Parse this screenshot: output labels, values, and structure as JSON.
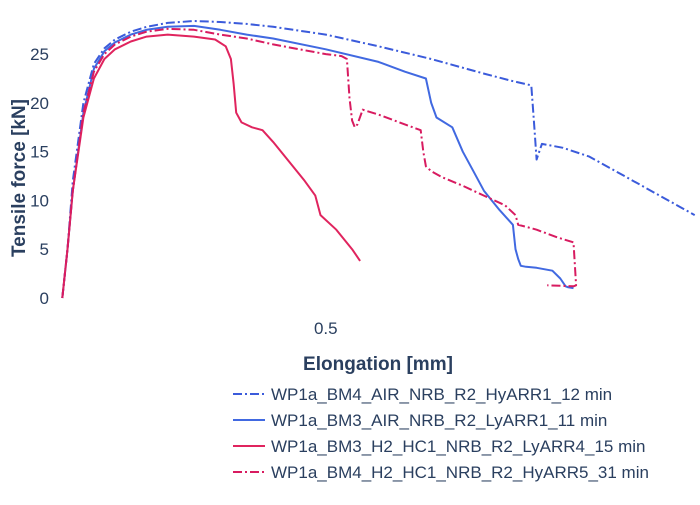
{
  "chart_data": {
    "type": "line",
    "xlabel": "Elongation [mm]",
    "ylabel": "Tensile force [kN]",
    "xlim": [
      -0.01,
      1.21
    ],
    "ylim": [
      0,
      28.5
    ],
    "x_ticks": [
      0.5
    ],
    "x_tick_labels": [
      "0.5"
    ],
    "y_ticks": [
      0,
      5,
      10,
      15,
      20,
      25
    ],
    "y_tick_labels": [
      "0",
      "5",
      "10",
      "15",
      "20",
      "25"
    ],
    "grid": false,
    "legend_position": "bottom-right",
    "series": [
      {
        "name": "WP1a_BM4_AIR_NRB_R2_HyARR1_12 min",
        "color": "#3b5bdb",
        "dash": "dashdot",
        "x": [
          0.0,
          0.01,
          0.02,
          0.04,
          0.06,
          0.08,
          0.1,
          0.13,
          0.16,
          0.2,
          0.25,
          0.3,
          0.35,
          0.4,
          0.5,
          0.6,
          0.7,
          0.8,
          0.85,
          0.89,
          0.895,
          0.9,
          0.91,
          0.95,
          1.0,
          1.05,
          1.1,
          1.15,
          1.2
        ],
        "y": [
          0,
          5,
          12,
          20,
          24,
          25.6,
          26.5,
          27.3,
          27.8,
          28.2,
          28.4,
          28.3,
          28.1,
          27.8,
          27.0,
          25.8,
          24.5,
          23.0,
          22.3,
          21.8,
          18.0,
          14.2,
          15.8,
          15.4,
          14.5,
          13.0,
          11.5,
          10.0,
          8.5
        ]
      },
      {
        "name": "WP1a_BM3_AIR_NRB_R2_LyARR1_11 min",
        "color": "#4169e1",
        "dash": "solid",
        "x": [
          0.0,
          0.01,
          0.02,
          0.04,
          0.06,
          0.08,
          0.1,
          0.13,
          0.16,
          0.2,
          0.25,
          0.3,
          0.35,
          0.4,
          0.5,
          0.6,
          0.65,
          0.69,
          0.7,
          0.71,
          0.74,
          0.76,
          0.78,
          0.8,
          0.83,
          0.855,
          0.86,
          0.865,
          0.87,
          0.88,
          0.9,
          0.93,
          0.945,
          0.955,
          0.96,
          0.97
        ],
        "y": [
          0,
          5,
          11,
          19,
          23.5,
          25.3,
          26.2,
          27.0,
          27.5,
          27.8,
          27.9,
          27.5,
          27.0,
          26.6,
          25.5,
          24.2,
          23.2,
          22.5,
          20.0,
          18.5,
          17.5,
          15.0,
          13.0,
          11.0,
          9.0,
          7.5,
          5.0,
          4.0,
          3.3,
          3.2,
          3.1,
          2.8,
          2.0,
          1.2,
          1.1,
          1.0
        ]
      },
      {
        "name": "WP1a_BM3_H2_HC1_NRB_R2_LyARR4_15 min",
        "color": "#e0245e",
        "dash": "solid",
        "x": [
          0.0,
          0.01,
          0.02,
          0.04,
          0.06,
          0.08,
          0.1,
          0.13,
          0.16,
          0.2,
          0.25,
          0.29,
          0.31,
          0.32,
          0.325,
          0.33,
          0.34,
          0.36,
          0.38,
          0.4,
          0.43,
          0.46,
          0.48,
          0.49,
          0.52,
          0.55,
          0.565
        ],
        "y": [
          0,
          5,
          11,
          18.5,
          22.5,
          24.5,
          25.5,
          26.3,
          26.8,
          27.0,
          26.8,
          26.5,
          25.8,
          24.5,
          22.0,
          19.0,
          18.0,
          17.5,
          17.2,
          16.0,
          14.0,
          12.0,
          10.5,
          8.5,
          7.0,
          5.0,
          3.8
        ]
      },
      {
        "name": "WP1a_BM4_H2_HC1_NRB_R2_HyARR5_31 min",
        "color": "#d81b60",
        "dash": "dashdot",
        "x": [
          0.0,
          0.01,
          0.02,
          0.04,
          0.06,
          0.08,
          0.1,
          0.13,
          0.16,
          0.2,
          0.25,
          0.3,
          0.35,
          0.4,
          0.45,
          0.5,
          0.53,
          0.54,
          0.545,
          0.55,
          0.555,
          0.56,
          0.57,
          0.6,
          0.65,
          0.68,
          0.685,
          0.69,
          0.7,
          0.72,
          0.76,
          0.8,
          0.84,
          0.86,
          0.865,
          0.88,
          0.9,
          0.94,
          0.97,
          0.975,
          0.97,
          0.92
        ],
        "y": [
          0,
          5,
          11,
          19,
          23.2,
          25,
          26,
          26.8,
          27.3,
          27.6,
          27.5,
          27.0,
          26.6,
          26.0,
          25.5,
          25.0,
          24.8,
          24.5,
          20.5,
          18.2,
          17.5,
          17.8,
          19.3,
          18.8,
          17.8,
          17.2,
          15.0,
          13.5,
          13.0,
          12.4,
          11.5,
          10.5,
          9.5,
          8.5,
          7.5,
          7.3,
          7.0,
          6.2,
          5.7,
          1.3,
          1.2,
          1.3
        ]
      }
    ]
  }
}
